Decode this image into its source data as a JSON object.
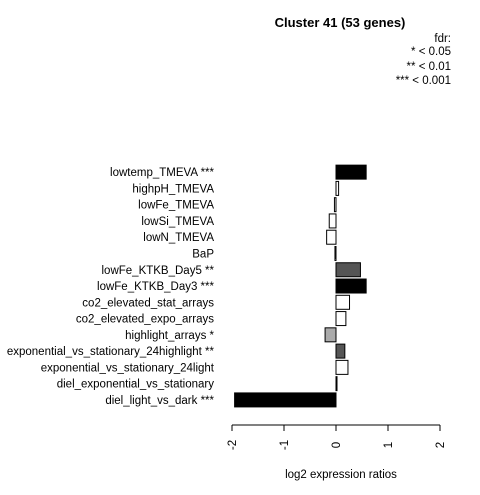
{
  "chart_data": {
    "type": "bar",
    "orientation": "horizontal",
    "title": "Cluster 41 (53 genes)",
    "xlabel": "log2 expression ratios",
    "ylabel": "",
    "xlim": [
      -2,
      2
    ],
    "xticks": [
      "-2",
      "-1",
      "0",
      "1",
      "2"
    ],
    "xtick_values": [
      -2,
      -1,
      0,
      1,
      2
    ],
    "grid": false,
    "legend": {
      "position": "top-right",
      "title": "fdr:",
      "entries": [
        "* < 0.05",
        "** < 0.01",
        "*** < 0.001"
      ]
    },
    "categories": [
      "lowtemp_TMEVA ***",
      "highpH_TMEVA",
      "lowFe_TMEVA",
      "lowSi_TMEVA",
      "lowN_TMEVA",
      "BaP",
      "lowFe_KTKB_Day5 **",
      "lowFe_KTKB_Day3 ***",
      "co2_elevated_stat_arrays",
      "co2_elevated_expo_arrays",
      "highlight_arrays *",
      "exponential_vs_stationary_24highlight **",
      "exponential_vs_stationary_24light",
      "diel_exponential_vs_stationary",
      "diel_light_vs_dark ***"
    ],
    "values": [
      0.58,
      0.05,
      -0.03,
      -0.13,
      -0.18,
      -0.02,
      0.47,
      0.58,
      0.26,
      0.19,
      -0.21,
      0.17,
      0.23,
      0.01,
      -1.95
    ],
    "significance": [
      "***",
      "",
      "",
      "",
      "",
      "",
      "**",
      "***",
      "",
      "",
      "*",
      "**",
      "",
      "",
      "***"
    ],
    "colors": {
      "***": "#000000",
      "**": "#555555",
      "*": "#aaaaaa",
      "": "#ffffff",
      "outline": "#000000"
    }
  }
}
